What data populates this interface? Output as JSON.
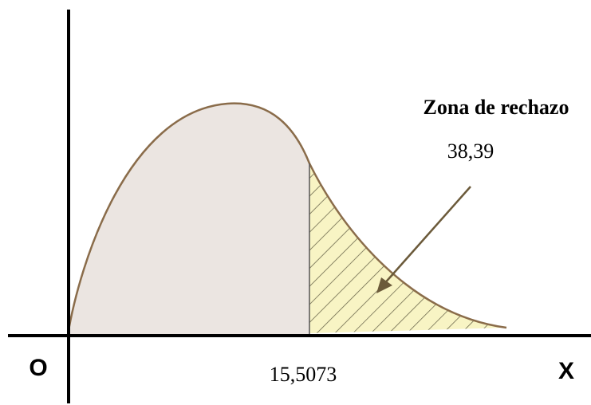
{
  "axis_labels": {
    "origin": "O",
    "x": "X"
  },
  "critical_value": "15,5073",
  "annotation": {
    "title": "Zona de rechazo",
    "value": "38,39"
  }
}
